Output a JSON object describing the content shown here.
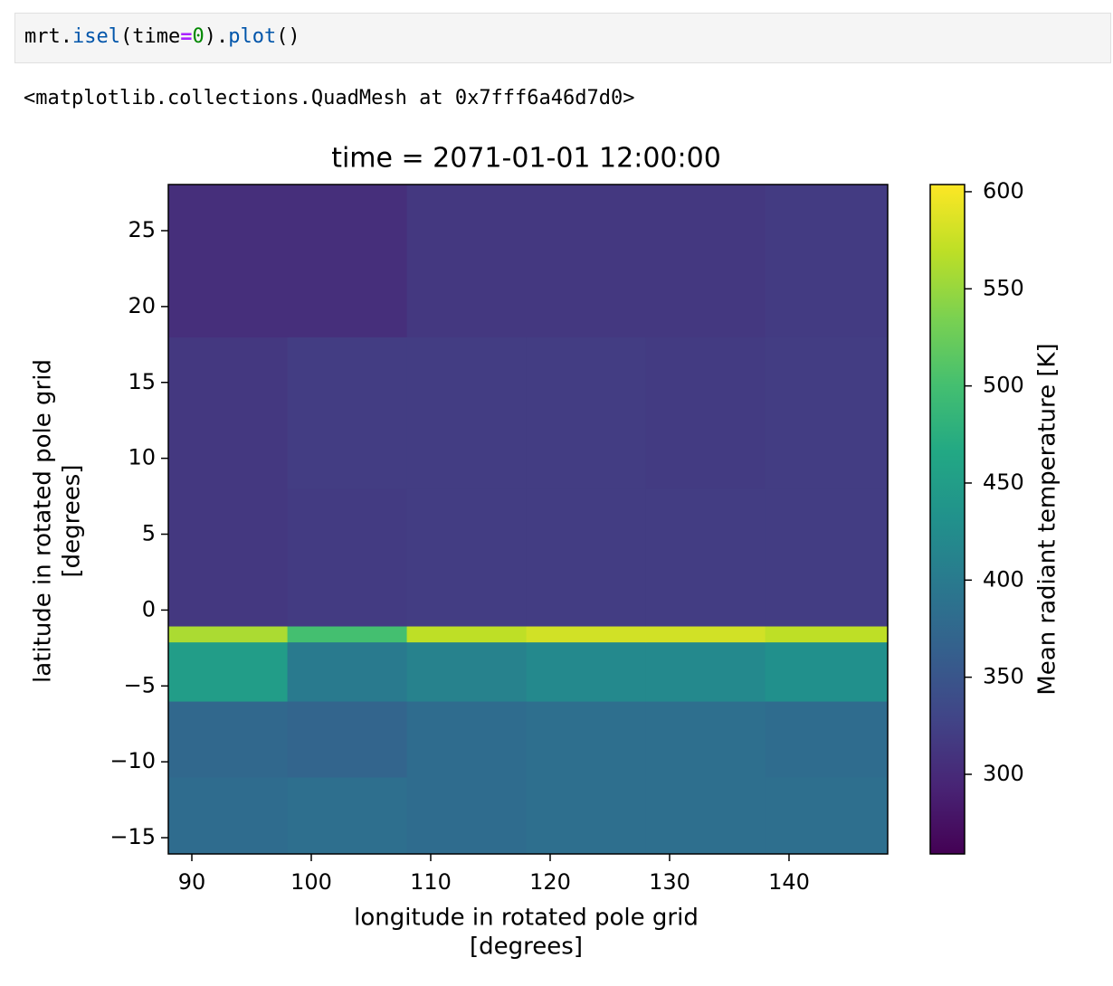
{
  "code": [
    "mrt.",
    "isel",
    "(time",
    "=",
    "0",
    ").",
    "plot",
    "()"
  ],
  "output": "<matplotlib.collections.QuadMesh at 0x7fff6a46d7d0>",
  "chart_data": {
    "type": "heatmap",
    "title": "time = 2071-01-01 12:00:00",
    "xlabel": [
      "longitude in rotated pole grid",
      "[degrees]"
    ],
    "ylabel": [
      "latitude in rotated pole grid",
      "[degrees]"
    ],
    "colorbar_label": "Mean radiant temperature [K]",
    "colormap": "viridis",
    "x": [
      88.03,
      98,
      108,
      118,
      128,
      138,
      148.26
    ],
    "y": [
      -16.07,
      -11,
      -6,
      -2.1,
      -1.05,
      8,
      18,
      28.04
    ],
    "values": [
      [
        380,
        385,
        380,
        385,
        385,
        385
      ],
      [
        375,
        370,
        380,
        385,
        385,
        380
      ],
      [
        450,
        400,
        410,
        420,
        420,
        430
      ],
      [
        560,
        500,
        570,
        580,
        580,
        570
      ],
      [
        315,
        318,
        320,
        320,
        320,
        320
      ],
      [
        315,
        320,
        320,
        320,
        318,
        320
      ],
      [
        305,
        305,
        315,
        315,
        315,
        318
      ]
    ],
    "xlim": [
      88.03,
      148.26
    ],
    "xticks": [
      90,
      100,
      110,
      120,
      130,
      140
    ],
    "ylim": [
      -16.07,
      28.04
    ],
    "yticks": [
      {
        "value": -15,
        "label": "−15"
      },
      {
        "value": -10,
        "label": "−10"
      },
      {
        "value": -5,
        "label": "−5"
      },
      0,
      5,
      10,
      15,
      20,
      25
    ],
    "clim": [
      259,
      603.7
    ],
    "cticks": [
      300,
      350,
      400,
      450,
      500,
      550,
      600
    ]
  }
}
